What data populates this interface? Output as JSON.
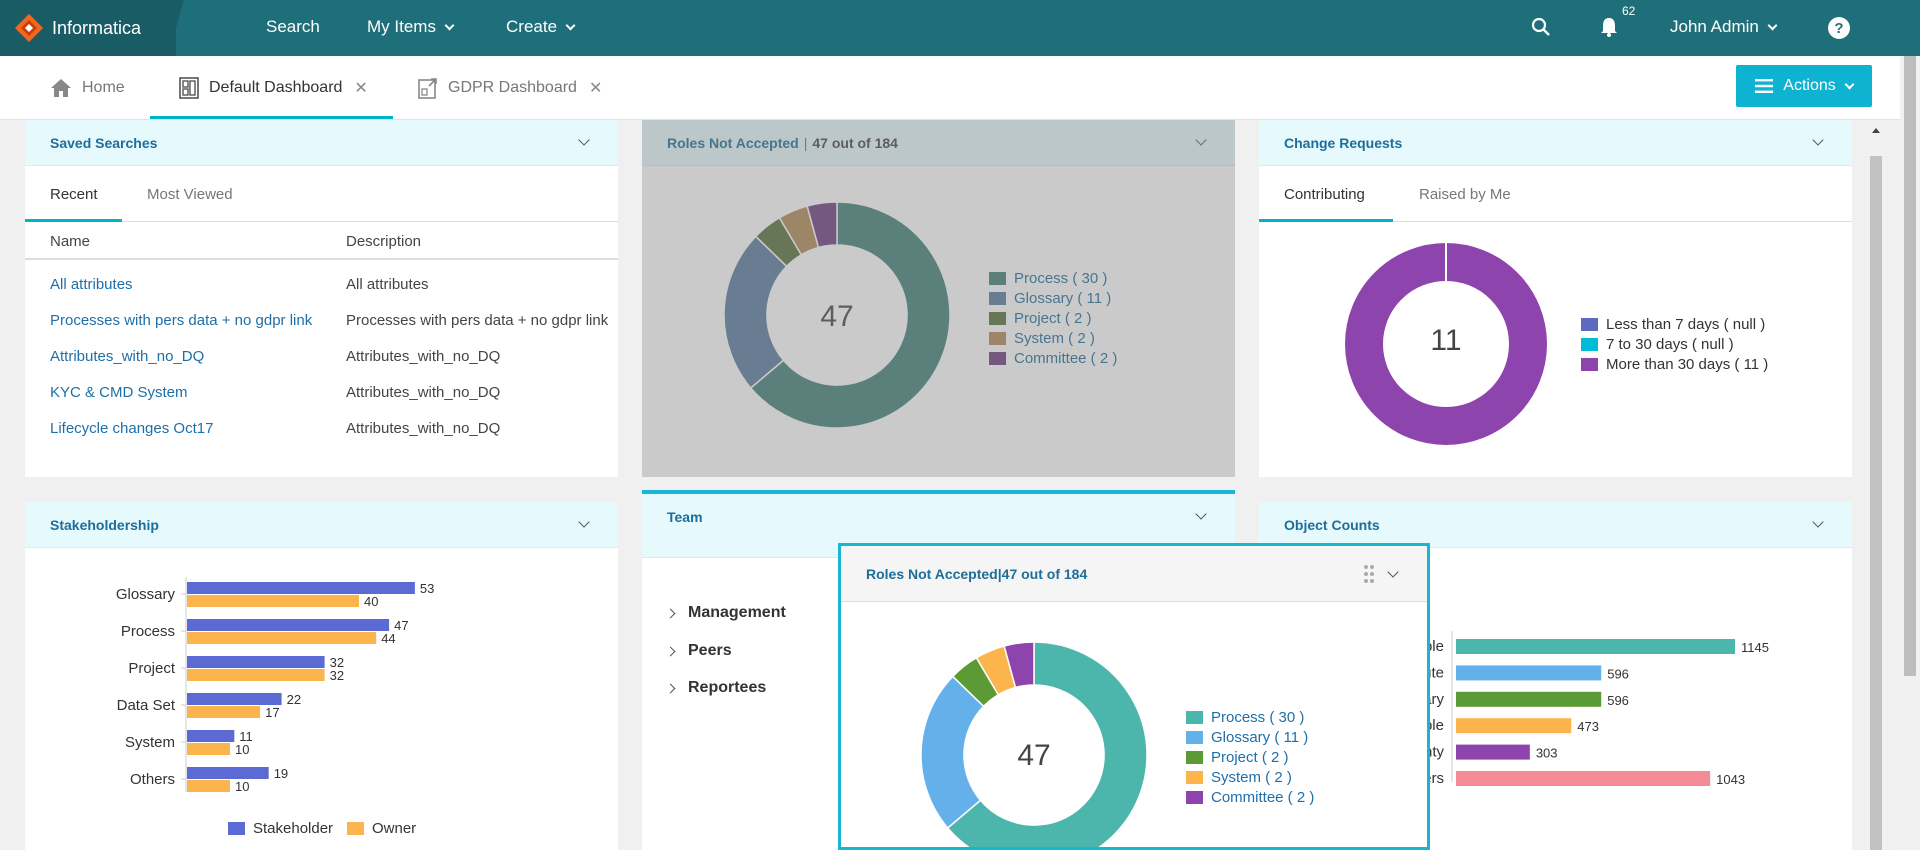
{
  "topnav": {
    "brand": "Informatica",
    "search": "Search",
    "my_items": "My Items",
    "create": "Create",
    "notification_count": "62",
    "user": "John Admin"
  },
  "tabs": [
    {
      "label": "Home"
    },
    {
      "label": "Default Dashboard"
    },
    {
      "label": "GDPR Dashboard"
    }
  ],
  "actions_label": "Actions",
  "saved_searches": {
    "title": "Saved Searches",
    "tabs": [
      "Recent",
      "Most Viewed"
    ],
    "columns": [
      "Name",
      "Description"
    ],
    "rows": [
      {
        "name": "All attributes",
        "description": "All attributes"
      },
      {
        "name": "Processes with pers data + no gdpr link",
        "description": "Processes with pers data + no gdpr link"
      },
      {
        "name": "Attributes_with_no_DQ",
        "description": "Attributes_with_no_DQ"
      },
      {
        "name": "KYC & CMD System",
        "description": "Attributes_with_no_DQ"
      },
      {
        "name": "Lifecycle changes Oct17",
        "description": "Attributes_with_no_DQ"
      }
    ]
  },
  "roles_not_accepted": {
    "title": "Roles Not Accepted",
    "count_text": "47 out of 184",
    "center": "47",
    "legend": [
      {
        "label": "Process ( 30 )",
        "value": 30,
        "color": "#4db6ac",
        "dim_color": "#418077"
      },
      {
        "label": "Glossary ( 11 )",
        "value": 11,
        "color": "#64b0ea",
        "dim_color": "#567b9d"
      },
      {
        "label": "Project ( 2 )",
        "value": 2,
        "color": "#5c9a35",
        "dim_color": "#546f38"
      },
      {
        "label": "System ( 2 )",
        "value": 2,
        "color": "#fbb54c",
        "dim_color": "#b08a55"
      },
      {
        "label": "Committee ( 2 )",
        "value": 2,
        "color": "#8e44ad",
        "dim_color": "#6d3b7f"
      }
    ]
  },
  "change_requests": {
    "title": "Change Requests",
    "tabs": [
      "Contributing",
      "Raised by Me"
    ],
    "center": "11",
    "legend": [
      {
        "label": "Less than 7 days ( null )",
        "color": "#5c6bc0"
      },
      {
        "label": "7 to 30 days ( null )",
        "color": "#00bcd4"
      },
      {
        "label": "More than 30 days ( 11 )",
        "color": "#8e44ad"
      }
    ],
    "donut_color": "#8e44ad"
  },
  "stakeholdership": {
    "title": "Stakeholdership",
    "legend": [
      {
        "label": "Stakeholder",
        "color": "#5c6bd4"
      },
      {
        "label": "Owner",
        "color": "#fbb54c"
      }
    ]
  },
  "team": {
    "title": "Team",
    "items": [
      "Management",
      "Peers",
      "Reportees"
    ]
  },
  "object_counts": {
    "title": "Object Counts"
  },
  "chart_data": [
    {
      "type": "pie",
      "title": "Roles Not Accepted",
      "categories": [
        "Process",
        "Glossary",
        "Project",
        "System",
        "Committee"
      ],
      "values": [
        30,
        11,
        2,
        2,
        2
      ]
    },
    {
      "type": "pie",
      "title": "Change Requests",
      "categories": [
        "Less than 7 days",
        "7 to 30 days",
        "More than 30 days"
      ],
      "values": [
        0,
        0,
        11
      ]
    },
    {
      "type": "bar",
      "title": "Stakeholdership",
      "orientation": "horizontal",
      "categories": [
        "Glossary",
        "Process",
        "Project",
        "Data Set",
        "System",
        "Others"
      ],
      "series": [
        {
          "name": "Stakeholder",
          "values": [
            53,
            47,
            32,
            22,
            11,
            19
          ],
          "color": "#5c6bd4"
        },
        {
          "name": "Owner",
          "values": [
            40,
            44,
            32,
            17,
            10,
            10
          ],
          "color": "#fbb54c"
        }
      ],
      "xlim": [
        0,
        62
      ]
    },
    {
      "type": "bar",
      "title": "Object Counts",
      "orientation": "horizontal",
      "categories": [
        "ble",
        "ute",
        "ary",
        "ble",
        "nty",
        "ers"
      ],
      "values": [
        1145,
        596,
        596,
        473,
        303,
        1043
      ],
      "colors": [
        "#4db6ac",
        "#64b0ea",
        "#5c9a35",
        "#fbb54c",
        "#8e44ad",
        "#f48a96"
      ],
      "xlim": [
        0,
        1300
      ]
    }
  ]
}
